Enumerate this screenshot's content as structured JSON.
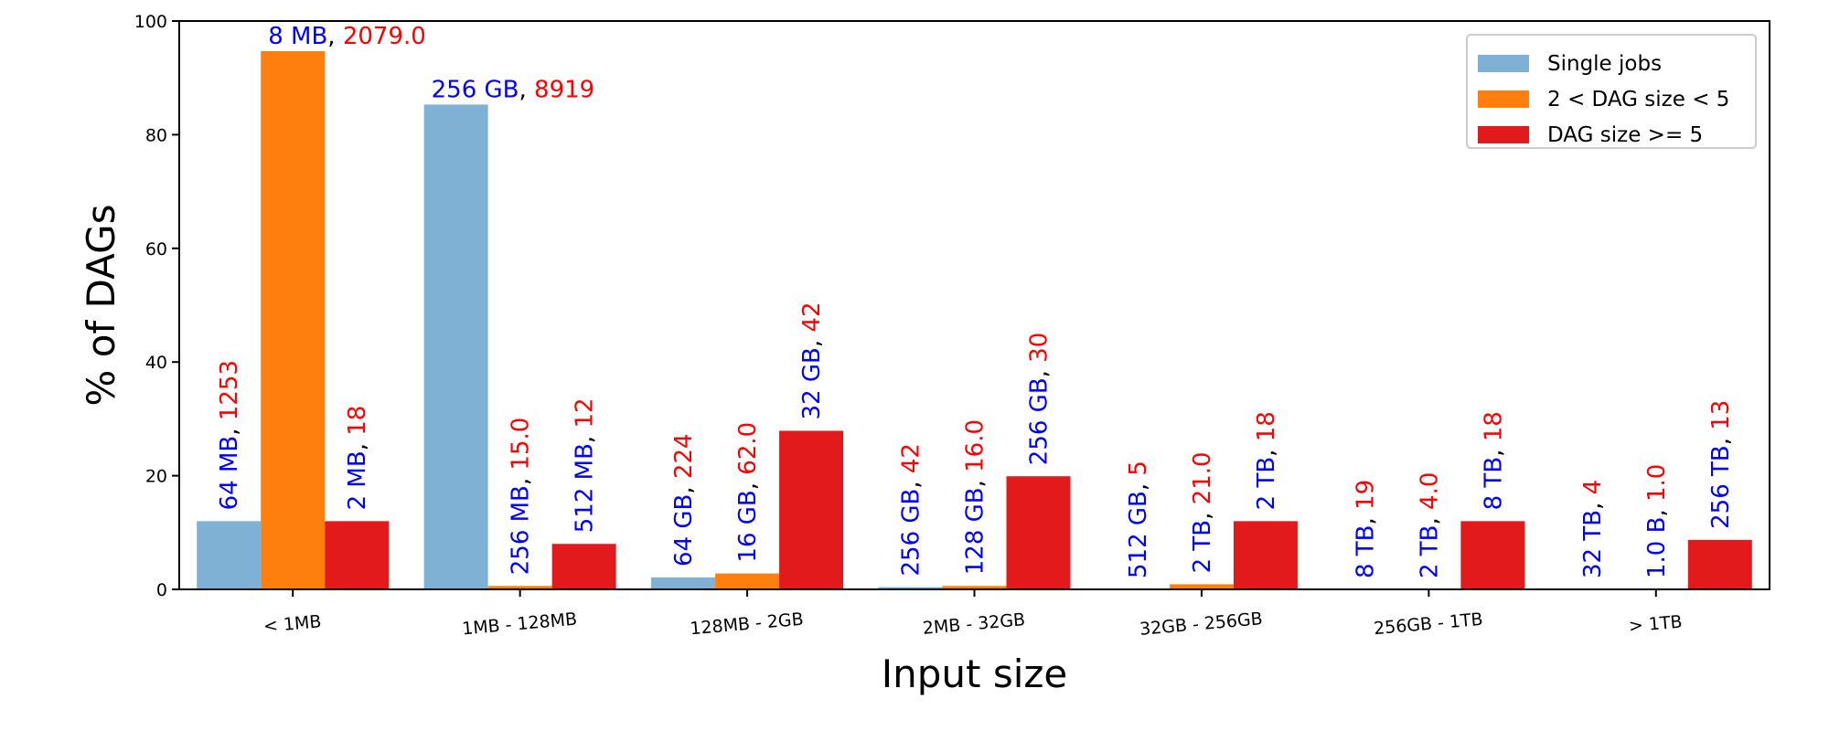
{
  "chart_data": {
    "type": "bar",
    "title": "",
    "xlabel": "Input size",
    "ylabel": "% of DAGs",
    "ylim": [
      0,
      100
    ],
    "yticks": [
      0,
      20,
      40,
      60,
      80,
      100
    ],
    "grid": false,
    "legend_position": "top-right",
    "categories": [
      "< 1MB",
      "1MB - 128MB",
      "128MB - 2GB",
      "2MB - 32GB",
      "32GB - 256GB",
      "256GB - 1TB",
      "> 1TB"
    ],
    "series": [
      {
        "name": "Single jobs",
        "color": "#7fb1d4",
        "values": [
          12,
          85.3,
          2.1,
          0.4,
          0,
          0,
          0
        ],
        "labels": [
          [
            "64 MB",
            "1253"
          ],
          [
            "256 GB",
            "8919"
          ],
          [
            "64 GB",
            "224"
          ],
          [
            "256 GB",
            "42"
          ],
          [
            "512 GB",
            "5"
          ],
          [
            "8 TB",
            "19"
          ],
          [
            "32 TB",
            "4"
          ]
        ]
      },
      {
        "name": "2 < DAG size < 5",
        "color": "#ff7f0e",
        "values": [
          94.7,
          0.6,
          2.8,
          0.6,
          0.9,
          0,
          0
        ],
        "labels": [
          [
            "8 MB",
            "2079.0"
          ],
          [
            "256 MB",
            "15.0"
          ],
          [
            "16 GB",
            "62.0"
          ],
          [
            "128 GB",
            "16.0"
          ],
          [
            "2 TB",
            "21.0"
          ],
          [
            "2 TB",
            "4.0"
          ],
          [
            "1.0 B",
            "1.0"
          ]
        ]
      },
      {
        "name": "DAG size >= 5",
        "color": "#e31a1c",
        "values": [
          12,
          8,
          27.9,
          19.9,
          12,
          12,
          8.7
        ],
        "labels": [
          [
            "2 MB",
            "18"
          ],
          [
            "512 MB",
            "12"
          ],
          [
            "32 GB",
            "42"
          ],
          [
            "256 GB",
            "30"
          ],
          [
            "2 TB",
            "18"
          ],
          [
            "8 TB",
            "18"
          ],
          [
            "256 TB",
            "13"
          ]
        ]
      }
    ],
    "label_colors": {
      "size": "#0000ff",
      "count": "#ff0000"
    }
  }
}
